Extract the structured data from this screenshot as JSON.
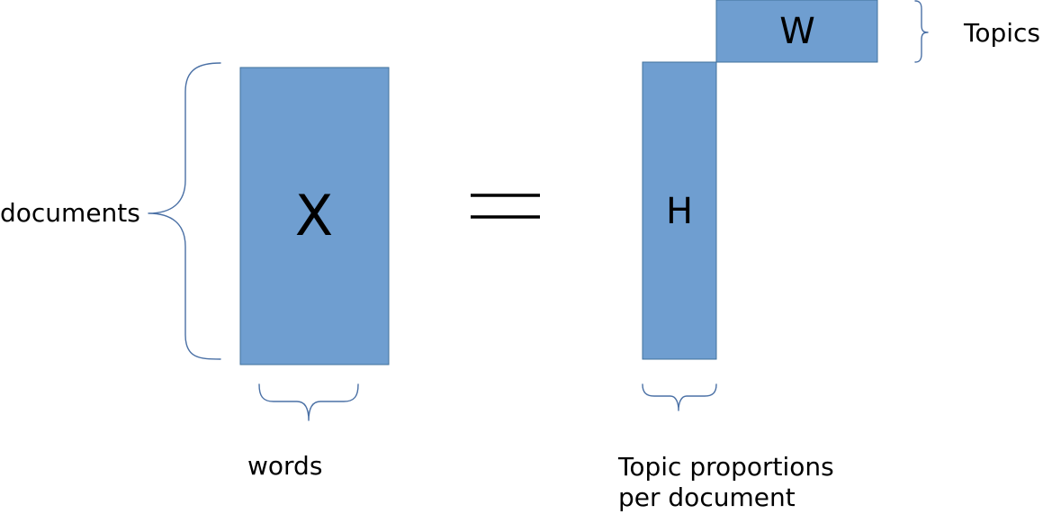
{
  "matrices": {
    "x": {
      "letter": "X"
    },
    "w": {
      "letter": "W"
    },
    "h": {
      "letter": "H"
    }
  },
  "labels": {
    "documents": "documents",
    "words": "words",
    "topics": "Topics",
    "topic_proportions_line1": "Topic proportions",
    "topic_proportions_line2": "per document"
  },
  "colors": {
    "matrix_fill": "#6F9ED0",
    "matrix_stroke": "#41719C",
    "brace": "#4A70A5",
    "equals": "#000000"
  }
}
